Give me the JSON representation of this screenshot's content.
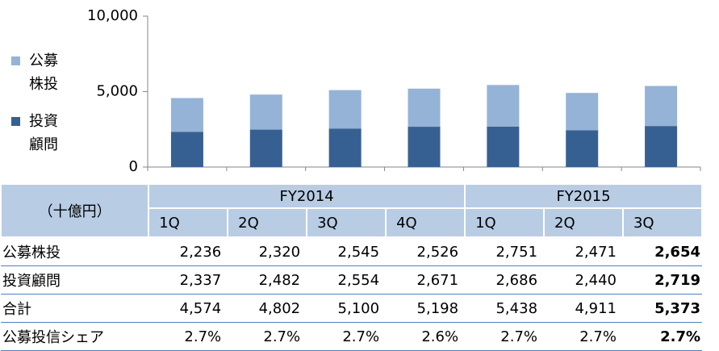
{
  "chart_data": {
    "type": "bar",
    "stacked": true,
    "categories": [
      "1Q",
      "2Q",
      "3Q",
      "4Q",
      "1Q",
      "2Q",
      "3Q"
    ],
    "groups": [
      {
        "label": "FY2014",
        "span": 4
      },
      {
        "label": "FY2015",
        "span": 3
      }
    ],
    "unit": "（十億円）",
    "series": [
      {
        "name": "公募株投",
        "color": "#95b3d7",
        "values": [
          2236,
          2320,
          2545,
          2526,
          2751,
          2471,
          2654
        ],
        "value_labels": [
          "2,236",
          "2,320",
          "2,545",
          "2,526",
          "2,751",
          "2,471",
          "2,654"
        ]
      },
      {
        "name": "投資顧問",
        "color": "#376092",
        "values": [
          2337,
          2482,
          2554,
          2671,
          2686,
          2440,
          2719
        ],
        "value_labels": [
          "2,337",
          "2,482",
          "2,554",
          "2,671",
          "2,686",
          "2,440",
          "2,719"
        ]
      }
    ],
    "ylim": [
      0,
      10000
    ],
    "yticks": [
      0,
      {
        "value": 5000,
        "label": "5,000"
      },
      {
        "value": 10000,
        "label": "10,000"
      }
    ],
    "table_rows": [
      {
        "label": "合計",
        "cells": [
          "4,574",
          "4,802",
          "5,100",
          "5,198",
          "5,438",
          "4,911",
          "5,373"
        ]
      },
      {
        "label": "公募投信シェア",
        "cells": [
          "2.7%",
          "2.7%",
          "2.7%",
          "2.6%",
          "2.7%",
          "2.7%",
          "2.7%"
        ]
      }
    ]
  }
}
